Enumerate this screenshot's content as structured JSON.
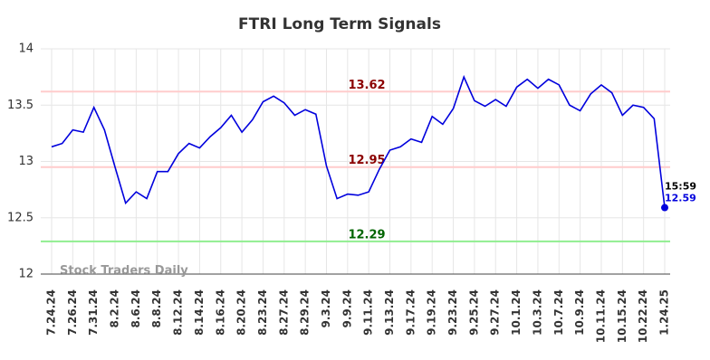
{
  "chart_data": {
    "type": "line",
    "title": "FTRI Long Term Signals",
    "categories": [
      "7.24.24",
      null,
      "7.26.24",
      null,
      "7.31.24",
      null,
      "8.2.24",
      null,
      "8.6.24",
      null,
      "8.8.24",
      null,
      "8.12.24",
      null,
      "8.14.24",
      null,
      "8.16.24",
      null,
      "8.20.24",
      null,
      "8.23.24",
      null,
      "8.27.24",
      null,
      "8.29.24",
      null,
      "9.3.24",
      null,
      "9.9.24",
      null,
      "9.11.24",
      null,
      "9.13.24",
      null,
      "9.17.24",
      null,
      "9.19.24",
      null,
      "9.23.24",
      null,
      "9.25.24",
      null,
      "9.27.24",
      null,
      "10.1.24",
      null,
      "10.3.24",
      null,
      "10.7.24",
      null,
      "10.9.24",
      null,
      "10.11.24",
      null,
      "10.15.24",
      null,
      "10.22.24",
      null,
      "1.24.25"
    ],
    "values": [
      13.13,
      13.16,
      13.28,
      13.26,
      13.48,
      13.28,
      12.95,
      12.63,
      12.73,
      12.67,
      12.91,
      12.91,
      13.07,
      13.16,
      13.12,
      13.22,
      13.3,
      13.41,
      13.26,
      13.37,
      13.53,
      13.58,
      13.52,
      13.41,
      13.46,
      13.42,
      12.96,
      12.67,
      12.71,
      12.7,
      12.73,
      12.93,
      13.1,
      13.13,
      13.2,
      13.17,
      13.4,
      13.33,
      13.47,
      13.75,
      13.54,
      13.49,
      13.55,
      13.49,
      13.66,
      13.73,
      13.65,
      13.73,
      13.68,
      13.5,
      13.45,
      13.6,
      13.68,
      13.61,
      13.41,
      13.5,
      13.48,
      13.38,
      12.59
    ],
    "color": "#0000dd",
    "ylim": [
      12,
      14
    ],
    "yticks": [
      12,
      12.5,
      13,
      13.5,
      14
    ],
    "grid": true,
    "hlines": [
      {
        "value": 13.62,
        "color": "#ffcccc",
        "label_color": "#8b0000"
      },
      {
        "value": 12.95,
        "color": "#ffcccc",
        "label_color": "#8b0000"
      },
      {
        "value": 12.29,
        "color": "#90ee90",
        "label_color": "#006400"
      }
    ],
    "last_time": "15:59",
    "watermark": "Stock Traders Daily"
  }
}
